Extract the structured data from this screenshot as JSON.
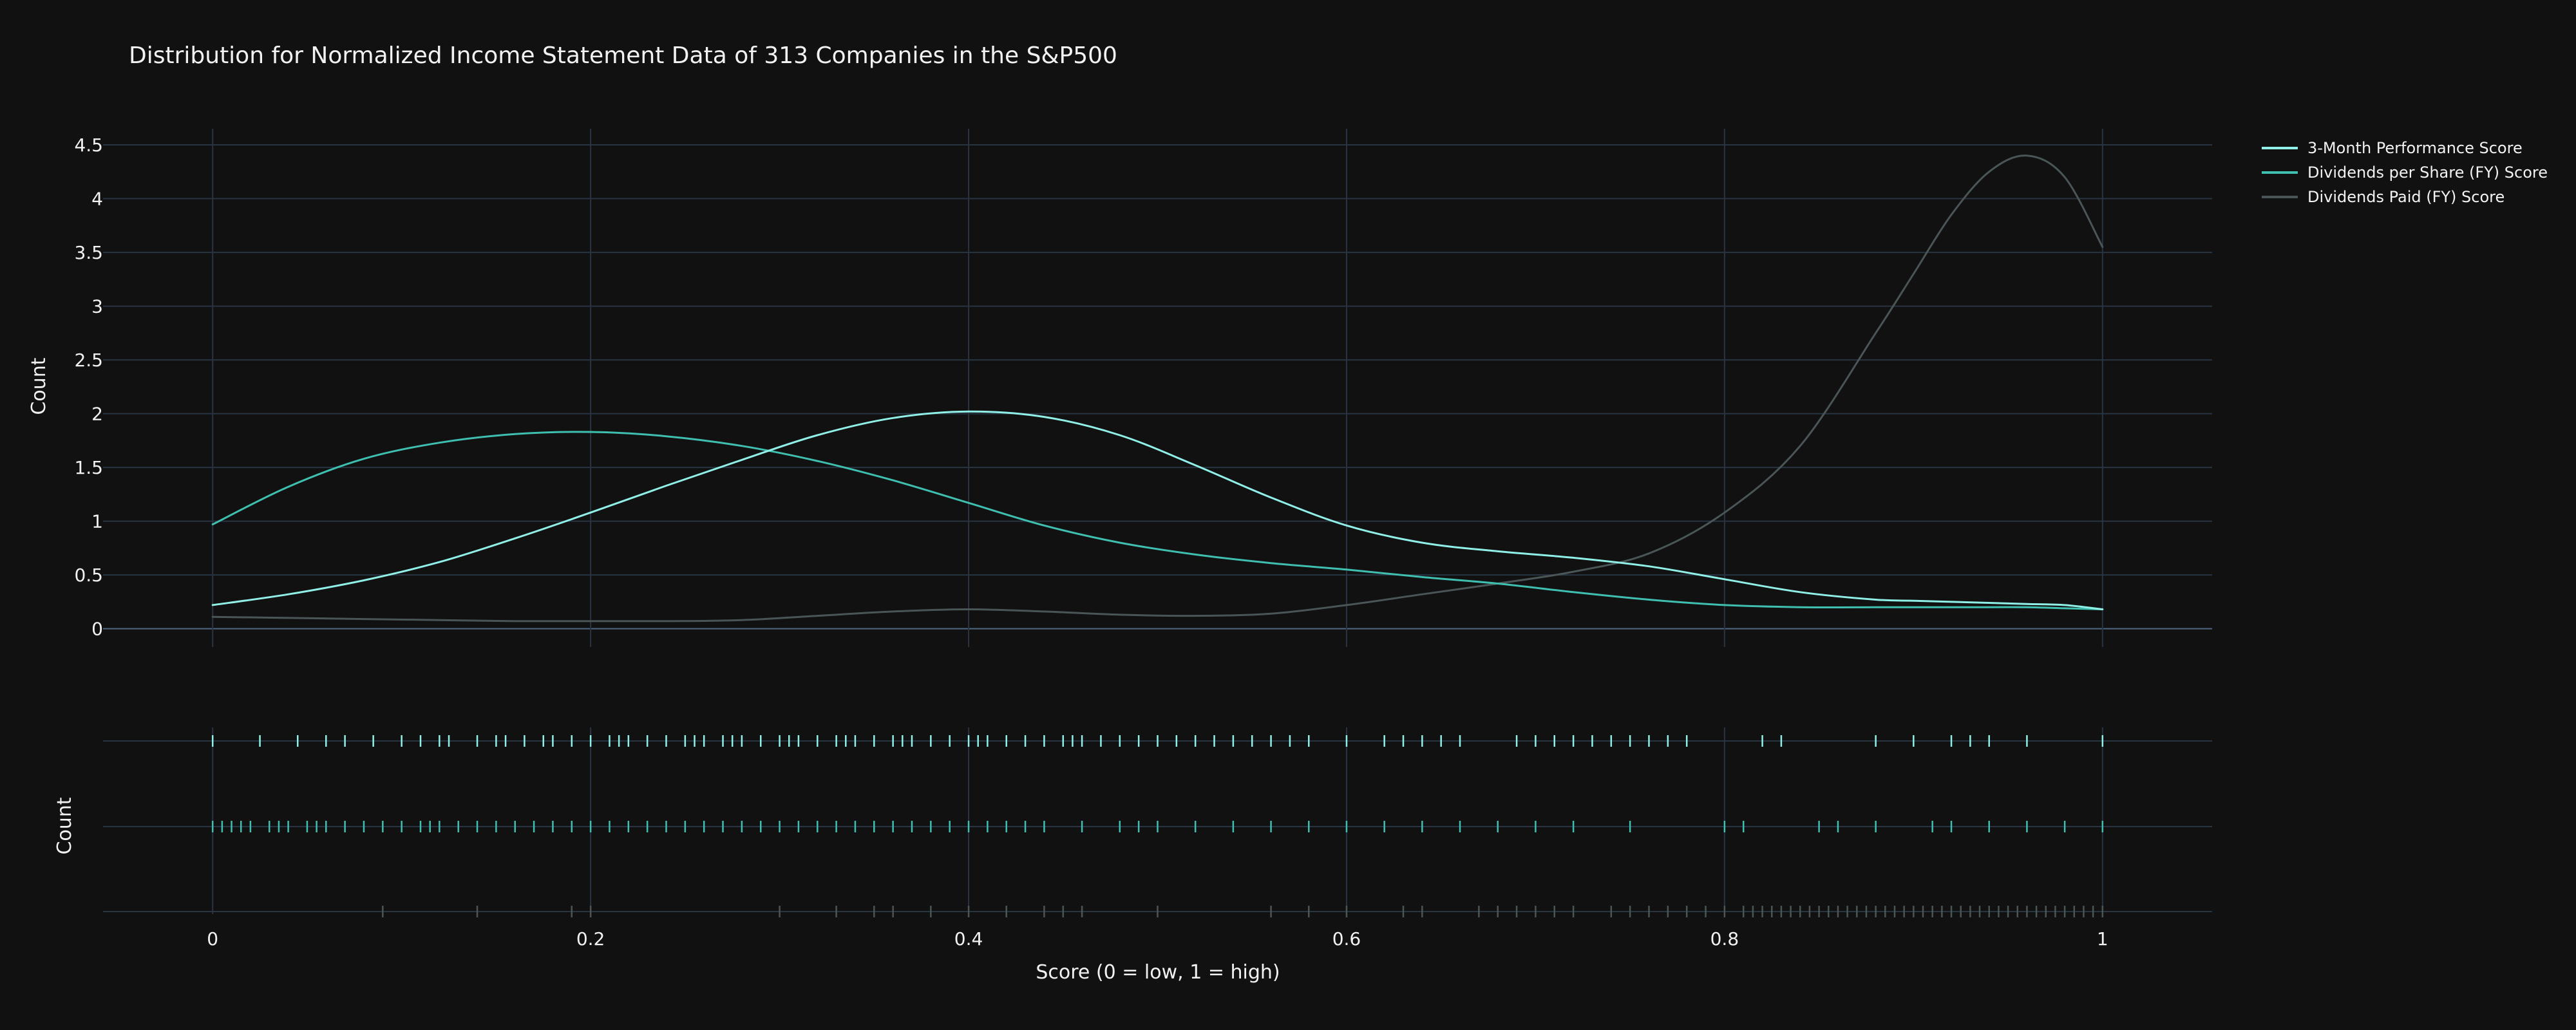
{
  "chart_data": {
    "type": "line",
    "title": "Distribution for Normalized Income Statement Data of 313 Companies in the S&P500",
    "xlabel": "Score (0 = low, 1 = high)",
    "ylabel": "Count",
    "rug_ylabel": "Count",
    "xlim": [
      -0.058,
      1.058
    ],
    "ylim": [
      -0.17,
      4.65
    ],
    "x_ticks": [
      0,
      0.2,
      0.4,
      0.6,
      0.8,
      1
    ],
    "x_tick_labels": [
      "0",
      "0.2",
      "0.4",
      "0.6",
      "0.8",
      "1"
    ],
    "y_ticks": [
      0,
      0.5,
      1,
      1.5,
      2,
      2.5,
      3,
      3.5,
      4,
      4.5
    ],
    "y_tick_labels": [
      "0",
      "0.5",
      "1",
      "1.5",
      "2",
      "2.5",
      "3",
      "3.5",
      "4",
      "4.5"
    ],
    "grid": true,
    "legend_position": "top-right",
    "x": [
      0,
      0.04,
      0.08,
      0.12,
      0.16,
      0.2,
      0.24,
      0.28,
      0.32,
      0.36,
      0.4,
      0.44,
      0.48,
      0.52,
      0.56,
      0.6,
      0.64,
      0.68,
      0.72,
      0.76,
      0.8,
      0.84,
      0.88,
      0.9,
      0.92,
      0.94,
      0.96,
      0.98,
      1
    ],
    "series": [
      {
        "name": "3-Month Performance Score",
        "color": "#90f0e8",
        "width": 3,
        "values": [
          0.22,
          0.32,
          0.45,
          0.62,
          0.84,
          1.08,
          1.33,
          1.57,
          1.8,
          1.96,
          2.02,
          1.97,
          1.8,
          1.52,
          1.22,
          0.96,
          0.8,
          0.72,
          0.66,
          0.58,
          0.46,
          0.34,
          0.27,
          0.26,
          0.25,
          0.24,
          0.23,
          0.22,
          0.18
        ]
      },
      {
        "name": "Dividends per Share (FY) Score",
        "color": "#3fbfb0",
        "width": 3,
        "values": [
          0.97,
          1.32,
          1.58,
          1.73,
          1.81,
          1.83,
          1.79,
          1.7,
          1.56,
          1.38,
          1.17,
          0.96,
          0.8,
          0.69,
          0.61,
          0.55,
          0.48,
          0.42,
          0.34,
          0.27,
          0.22,
          0.2,
          0.2,
          0.2,
          0.2,
          0.2,
          0.2,
          0.19,
          0.18
        ]
      },
      {
        "name": "Dividends Paid (FY) Score",
        "color": "#4a5557",
        "width": 3,
        "values": [
          0.11,
          0.1,
          0.09,
          0.08,
          0.07,
          0.07,
          0.07,
          0.08,
          0.12,
          0.16,
          0.18,
          0.16,
          0.13,
          0.12,
          0.14,
          0.22,
          0.32,
          0.42,
          0.53,
          0.7,
          1.08,
          1.7,
          2.75,
          3.3,
          3.85,
          4.25,
          4.4,
          4.2,
          3.55
        ]
      }
    ],
    "rug": [
      {
        "name": "3-Month Performance Score",
        "values": [
          0,
          0.025,
          0.045,
          0.06,
          0.07,
          0.085,
          0.1,
          0.11,
          0.12,
          0.125,
          0.14,
          0.15,
          0.155,
          0.165,
          0.175,
          0.18,
          0.19,
          0.2,
          0.21,
          0.215,
          0.22,
          0.23,
          0.24,
          0.25,
          0.255,
          0.26,
          0.27,
          0.275,
          0.28,
          0.29,
          0.3,
          0.305,
          0.31,
          0.32,
          0.33,
          0.335,
          0.34,
          0.35,
          0.36,
          0.365,
          0.37,
          0.38,
          0.39,
          0.4,
          0.405,
          0.41,
          0.42,
          0.43,
          0.44,
          0.45,
          0.455,
          0.46,
          0.47,
          0.48,
          0.49,
          0.5,
          0.51,
          0.52,
          0.53,
          0.54,
          0.55,
          0.56,
          0.57,
          0.58,
          0.6,
          0.62,
          0.63,
          0.64,
          0.65,
          0.66,
          0.69,
          0.7,
          0.71,
          0.72,
          0.73,
          0.74,
          0.75,
          0.76,
          0.77,
          0.78,
          0.82,
          0.83,
          0.88,
          0.9,
          0.92,
          0.93,
          0.94,
          0.96,
          1
        ]
      },
      {
        "name": "Dividends per Share (FY) Score",
        "values": [
          0,
          0.005,
          0.01,
          0.015,
          0.02,
          0.03,
          0.035,
          0.04,
          0.05,
          0.055,
          0.06,
          0.07,
          0.08,
          0.09,
          0.1,
          0.11,
          0.115,
          0.12,
          0.13,
          0.14,
          0.15,
          0.16,
          0.17,
          0.18,
          0.19,
          0.2,
          0.21,
          0.22,
          0.23,
          0.24,
          0.25,
          0.26,
          0.27,
          0.28,
          0.29,
          0.3,
          0.31,
          0.32,
          0.33,
          0.34,
          0.35,
          0.36,
          0.37,
          0.38,
          0.39,
          0.4,
          0.41,
          0.42,
          0.43,
          0.44,
          0.46,
          0.48,
          0.49,
          0.5,
          0.52,
          0.54,
          0.56,
          0.58,
          0.6,
          0.62,
          0.64,
          0.66,
          0.68,
          0.7,
          0.72,
          0.75,
          0.8,
          0.81,
          0.85,
          0.86,
          0.88,
          0.91,
          0.92,
          0.94,
          0.96,
          0.98,
          1
        ]
      },
      {
        "name": "Dividends Paid (FY) Score",
        "values": [
          0.09,
          0.14,
          0.19,
          0.2,
          0.3,
          0.33,
          0.35,
          0.36,
          0.38,
          0.4,
          0.42,
          0.44,
          0.45,
          0.46,
          0.5,
          0.56,
          0.58,
          0.6,
          0.63,
          0.64,
          0.67,
          0.68,
          0.69,
          0.7,
          0.71,
          0.72,
          0.74,
          0.75,
          0.76,
          0.77,
          0.78,
          0.79,
          0.8,
          0.81,
          0.815,
          0.82,
          0.825,
          0.83,
          0.835,
          0.84,
          0.845,
          0.85,
          0.855,
          0.86,
          0.865,
          0.87,
          0.875,
          0.88,
          0.885,
          0.89,
          0.895,
          0.9,
          0.905,
          0.91,
          0.915,
          0.92,
          0.925,
          0.93,
          0.935,
          0.94,
          0.945,
          0.95,
          0.955,
          0.96,
          0.965,
          0.97,
          0.975,
          0.98,
          0.985,
          0.99,
          0.995,
          1
        ]
      }
    ]
  },
  "colors": {
    "background": "#111111",
    "grid": "#283442",
    "zeroline": "#506784",
    "text": "#f2f2f2"
  }
}
